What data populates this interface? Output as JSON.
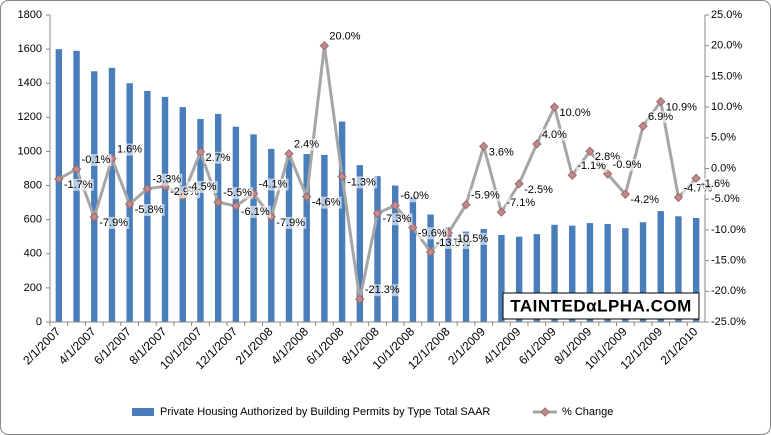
{
  "chart_data": {
    "type": "bar_line",
    "categories": [
      "2/1/2007",
      null,
      "4/1/2007",
      null,
      "6/1/2007",
      null,
      "8/1/2007",
      null,
      "10/1/2007",
      null,
      "12/1/2007",
      null,
      "2/1/2008",
      null,
      "4/1/2008",
      null,
      "6/1/2008",
      null,
      "8/1/2008",
      null,
      "10/1/2008",
      null,
      "12/1/2008",
      null,
      "2/1/2009",
      null,
      "4/1/2009",
      null,
      "6/1/2009",
      null,
      "8/1/2009",
      null,
      "10/1/2009",
      null,
      "12/1/2009",
      null,
      "2/1/2010"
    ],
    "series": [
      {
        "name": "Private Housing Authorized by Building Permits by Type Total SAAR",
        "color": "#4a7ebb",
        "values": [
          1600,
          1590,
          1470,
          1490,
          1400,
          1355,
          1320,
          1260,
          1190,
          1220,
          1145,
          1100,
          1015,
          965,
          985,
          980,
          1175,
          920,
          855,
          800,
          735,
          630,
          555,
          530,
          545,
          510,
          500,
          515,
          570,
          565,
          580,
          575,
          550,
          585,
          650,
          620,
          610
        ]
      },
      {
        "name": "% Change",
        "color": "#a6a6a6",
        "marker_color": "#c4898a",
        "axis": "y2",
        "values": [
          -1.7,
          -0.1,
          -7.9,
          1.6,
          -5.8,
          -3.3,
          -2.9,
          -4.5,
          2.7,
          -5.5,
          -6.1,
          -4.1,
          -7.9,
          2.4,
          -4.6,
          20.0,
          -1.3,
          -21.3,
          -7.3,
          -6.0,
          -9.6,
          -13.6,
          -10.5,
          -5.9,
          3.6,
          -7.1,
          -2.5,
          4.0,
          10.0,
          -1.1,
          2.8,
          -0.9,
          -4.2,
          6.9,
          10.9,
          -4.7,
          -1.6
        ],
        "value_labels": [
          "-1.7%",
          "-0.1%",
          "-7.9%",
          "1.6%",
          "-5.8%",
          "-3.3%",
          "-2.9%",
          "-4.5%",
          "2.7%",
          "-5.5%",
          "-6.1%",
          "-4.1%",
          "-7.9%",
          "2.4%",
          "-4.6%",
          "20.0%",
          "-1.3%",
          "-21.3%",
          "-7.3%",
          "-6.0%",
          "-9.6%",
          "-13.6%",
          "-10.5%",
          "-5.9%",
          "3.6%",
          "-7.1%",
          "-2.5%",
          "4.0%",
          "10.0%",
          "-1.1%",
          "2.8%",
          "-0.9%",
          "-4.2%",
          "6.9%",
          "10.9%",
          "-4.7%",
          "-1.6%"
        ]
      }
    ],
    "ylim": [
      0,
      1800
    ],
    "yticks": [
      0,
      200,
      400,
      600,
      800,
      1000,
      1200,
      1400,
      1600,
      1800
    ],
    "y2lim": [
      -25,
      25
    ],
    "y2ticks": [
      {
        "value": -25,
        "label": "-25.0%"
      },
      {
        "value": -20,
        "label": "-20.0%"
      },
      {
        "value": -15,
        "label": "-15.0%"
      },
      {
        "value": -10,
        "label": "-10.0%"
      },
      {
        "value": -5,
        "label": "-5.0%"
      },
      {
        "value": 0,
        "label": "0.0%"
      },
      {
        "value": 5,
        "label": "5.0%"
      },
      {
        "value": 10,
        "label": "10.0%"
      },
      {
        "value": 15,
        "label": "15.0%"
      },
      {
        "value": 20,
        "label": "20.0%"
      },
      {
        "value": 25,
        "label": "25.0%"
      }
    ],
    "legend": "bottom",
    "watermark": "TAINTEDαLPHA.COM"
  }
}
